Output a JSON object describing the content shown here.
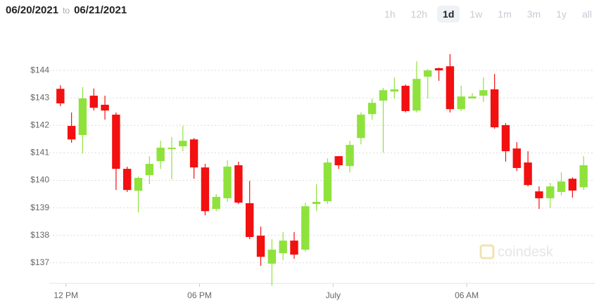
{
  "header": {
    "from": "06/20/2021",
    "to_label": "to",
    "to": "06/21/2021",
    "ranges": [
      "1h",
      "12h",
      "1d",
      "1w",
      "1m",
      "3m",
      "1y",
      "all"
    ],
    "selected_range": "1d"
  },
  "chart_data": {
    "type": "candlestick",
    "watermark": "coindesk",
    "up_color": "#8fe23c",
    "down_color": "#f21010",
    "grid": true,
    "xlim": [
      11.25,
      35.75
    ],
    "xticks": [
      {
        "value": 12,
        "label": "12 PM"
      },
      {
        "value": 18,
        "label": "06 PM"
      },
      {
        "value": 24,
        "label": "July"
      },
      {
        "value": 30,
        "label": "06 AM"
      }
    ],
    "ylim": [
      136.1,
      145
    ],
    "yticks": [
      {
        "value": 137,
        "label": "$137"
      },
      {
        "value": 138,
        "label": "$138"
      },
      {
        "value": 139,
        "label": "$139"
      },
      {
        "value": 140,
        "label": "$140"
      },
      {
        "value": 141,
        "label": "$141"
      },
      {
        "value": 142,
        "label": "$142"
      },
      {
        "value": 143,
        "label": "$143"
      },
      {
        "value": 144,
        "label": "$144"
      }
    ],
    "x": [
      11.75,
      12.25,
      12.75,
      13.25,
      13.75,
      14.25,
      14.75,
      15.25,
      15.75,
      16.25,
      16.75,
      17.25,
      17.75,
      18.25,
      18.75,
      19.25,
      19.75,
      20.25,
      20.75,
      21.25,
      21.75,
      22.25,
      22.75,
      23.25,
      23.75,
      24.25,
      24.75,
      25.25,
      25.75,
      26.25,
      26.75,
      27.25,
      27.75,
      28.25,
      28.75,
      29.25,
      29.75,
      30.25,
      30.75,
      31.25,
      31.75,
      32.25,
      32.75,
      33.25,
      33.75,
      34.25,
      34.75,
      35.25
    ],
    "open": [
      143.33,
      141.98,
      141.65,
      143.08,
      142.75,
      142.39,
      140.42,
      139.62,
      140.19,
      140.7,
      141.14,
      141.24,
      141.49,
      140.47,
      138.96,
      139.35,
      140.55,
      139.17,
      137.99,
      136.97,
      137.35,
      137.81,
      137.48,
      139.14,
      139.24,
      140.88,
      140.52,
      141.54,
      142.41,
      142.9,
      143.23,
      143.44,
      142.54,
      143.77,
      144.08,
      144.15,
      142.59,
      142.98,
      143.08,
      143.31,
      142.01,
      141.16,
      140.65,
      139.6,
      139.35,
      139.58,
      140.06,
      139.75
    ],
    "high": [
      143.46,
      142.47,
      143.39,
      143.34,
      143.08,
      142.47,
      140.5,
      140.14,
      140.88,
      141.44,
      141.57,
      141.98,
      141.54,
      140.6,
      139.5,
      140.73,
      140.68,
      139.98,
      138.32,
      137.86,
      138.12,
      138.12,
      139.19,
      139.86,
      140.8,
      140.88,
      141.44,
      142.47,
      142.98,
      143.36,
      143.74,
      143.49,
      144.33,
      144.05,
      144.1,
      144.59,
      143.44,
      143.18,
      143.74,
      143.87,
      142.08,
      141.39,
      141.06,
      139.78,
      139.91,
      140.29,
      140.11,
      140.88
    ],
    "low": [
      142.7,
      141.37,
      140.98,
      142.54,
      142.21,
      139.65,
      139.58,
      138.83,
      139.86,
      140.42,
      140.04,
      141.06,
      140.06,
      138.73,
      138.88,
      139.22,
      139.14,
      137.86,
      136.89,
      136.17,
      137.09,
      137.15,
      137.4,
      138.88,
      139.14,
      140.42,
      140.29,
      141.31,
      142.21,
      141.01,
      142.98,
      142.47,
      142.47,
      142.98,
      143.62,
      142.47,
      142.52,
      142.98,
      142.85,
      141.88,
      140.68,
      140.34,
      139.78,
      138.96,
      138.99,
      139.45,
      139.37,
      139.65
    ],
    "close": [
      142.8,
      141.49,
      142.98,
      142.64,
      142.54,
      140.42,
      139.65,
      140.09,
      140.6,
      141.19,
      141.19,
      141.44,
      140.47,
      138.88,
      139.4,
      140.5,
      139.19,
      137.94,
      137.22,
      137.48,
      137.81,
      137.3,
      139.06,
      139.22,
      140.65,
      140.55,
      141.29,
      142.39,
      142.82,
      143.28,
      143.31,
      142.52,
      143.69,
      144.0,
      144.0,
      142.59,
      143.05,
      143.05,
      143.28,
      141.93,
      141.06,
      140.45,
      139.83,
      139.35,
      139.78,
      139.96,
      139.63,
      140.55
    ]
  }
}
